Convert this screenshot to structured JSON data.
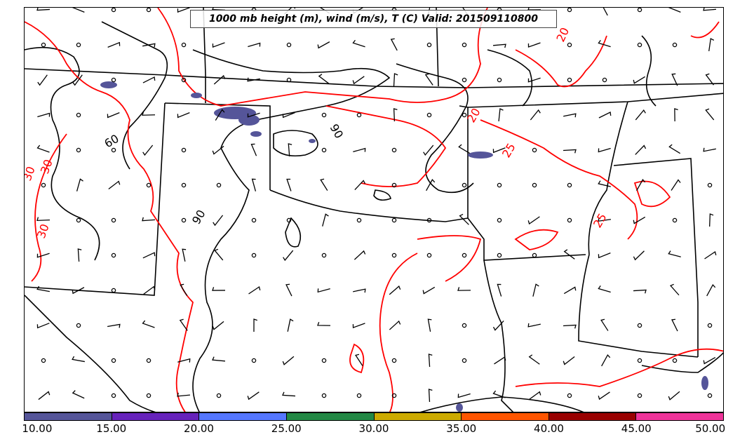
{
  "title": "1000 mb height (m), wind (m/s), T (C) Valid: 201509110800",
  "height_contour_labels": [
    "60",
    "90",
    "90"
  ],
  "temp_contour_labels": [
    "30",
    "30",
    "30",
    "20",
    "20",
    "25",
    "25"
  ],
  "colorbar": {
    "ticks": [
      "10.00",
      "15.00",
      "20.00",
      "25.00",
      "30.00",
      "35.00",
      "40.00",
      "45.00",
      "50.00"
    ],
    "colors": [
      "#555599",
      "#6622bb",
      "#5577ff",
      "#228844",
      "#ccaa00",
      "#ff5500",
      "#990000",
      "#ee3399"
    ]
  },
  "colors": {
    "height_contour": "#000000",
    "temperature_contour": "#ff0000",
    "precip_shading": "#555599"
  }
}
